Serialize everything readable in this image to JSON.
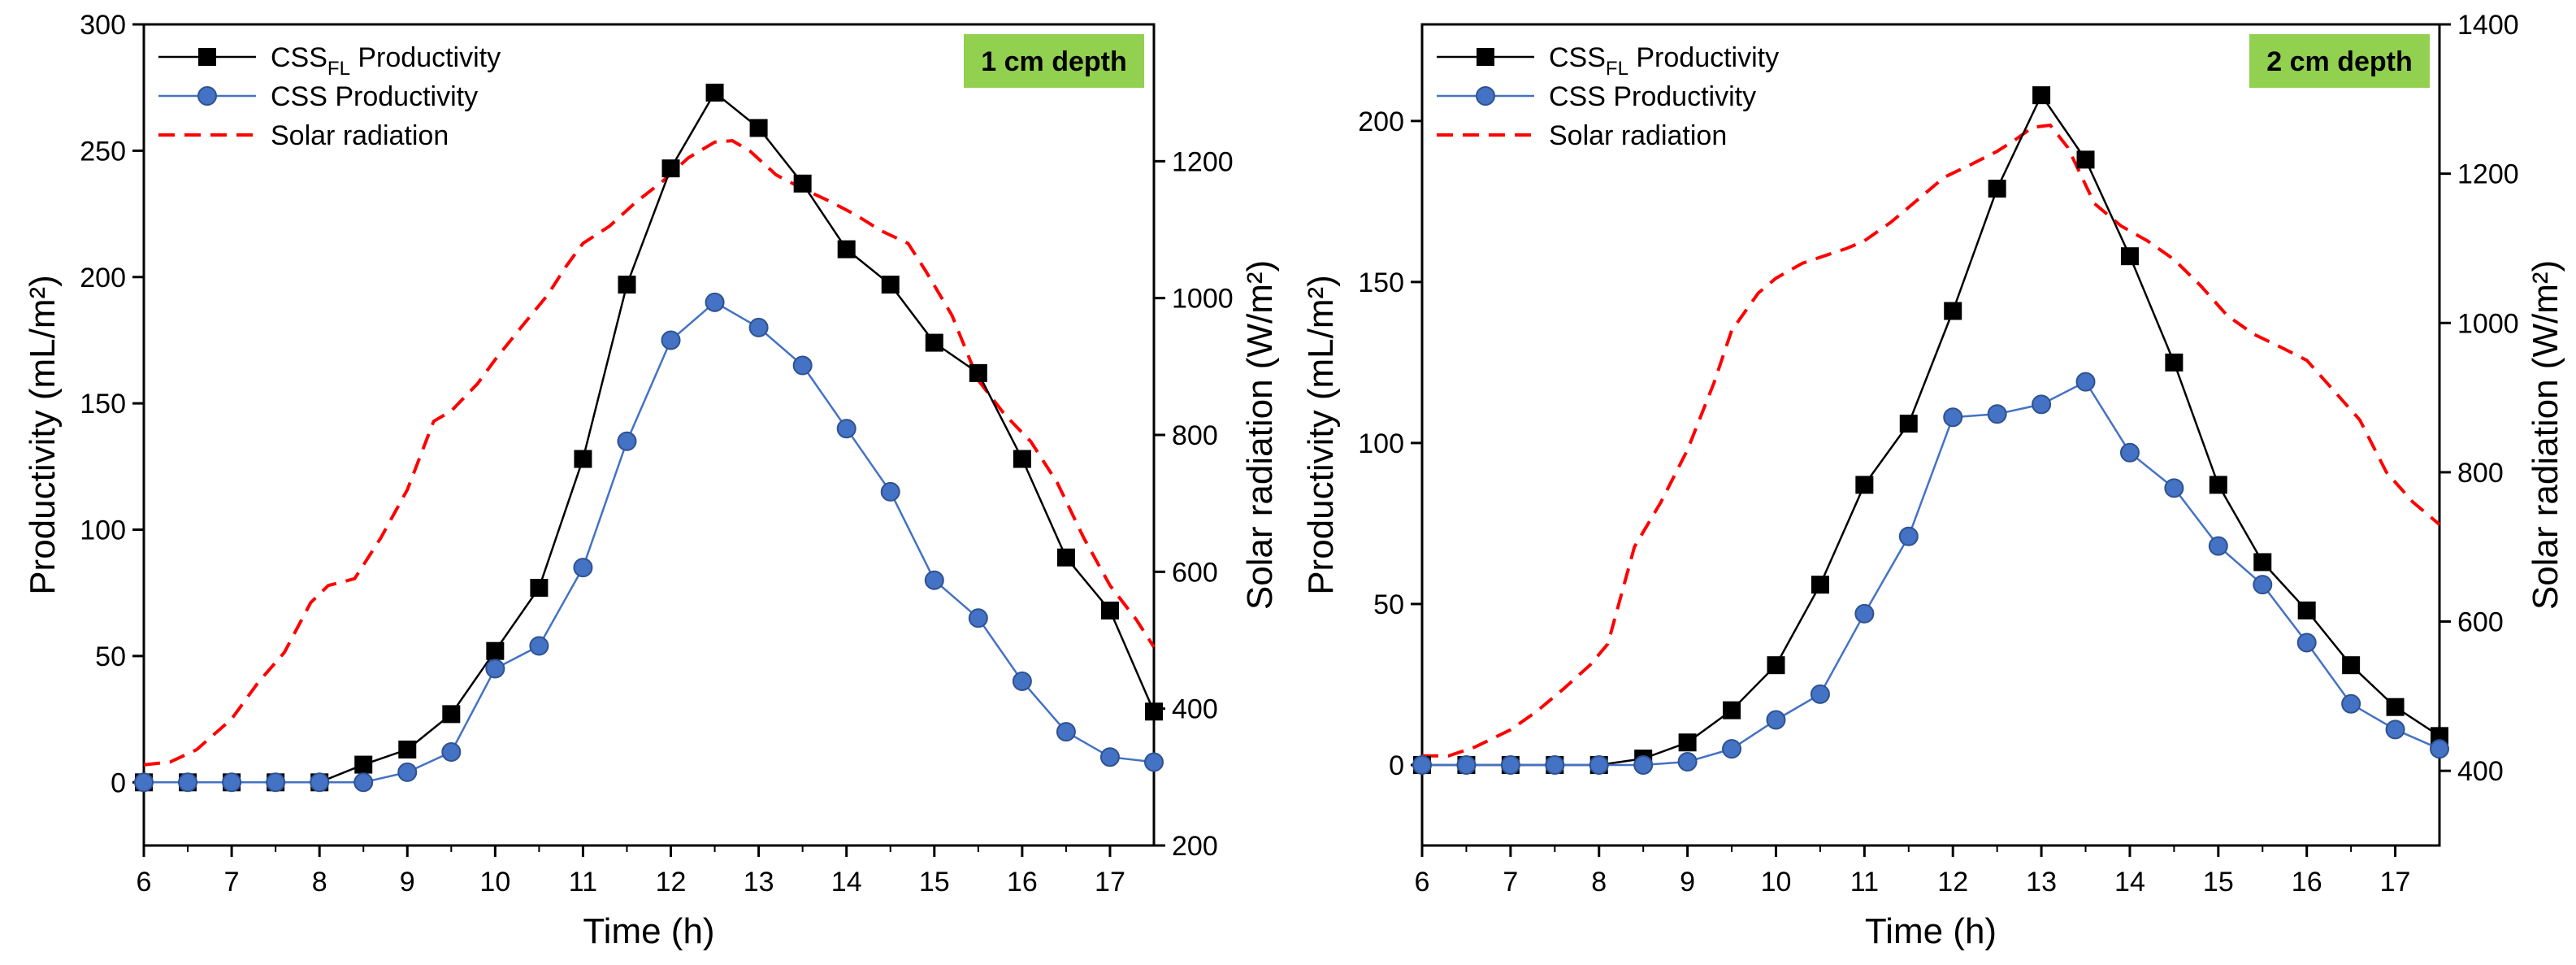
{
  "chart_data": [
    {
      "type": "line",
      "badge": "1 cm depth",
      "badge_color": "#92d050",
      "xlabel": "Time (h)",
      "ylabel": "Productivity (mL/m²)",
      "y2label": "Solar radiation (W/m²)",
      "xlim": [
        6,
        17.5
      ],
      "ylim": [
        -25,
        300
      ],
      "y2lim": [
        200,
        1400
      ],
      "xticks": [
        6,
        7,
        8,
        9,
        10,
        11,
        12,
        13,
        14,
        15,
        16,
        17
      ],
      "yticks": [
        0,
        50,
        100,
        150,
        200,
        250,
        300
      ],
      "y2ticks": [
        200,
        400,
        600,
        800,
        1000,
        1200
      ],
      "x": [
        6,
        6.5,
        7,
        7.5,
        8,
        8.5,
        9,
        9.5,
        10,
        10.5,
        11,
        11.5,
        12,
        12.5,
        13,
        13.5,
        14,
        14.5,
        15,
        15.5,
        16,
        16.5,
        17,
        17.5
      ],
      "series": [
        {
          "name": "CSS_FL Productivity",
          "name_main": "CSS",
          "name_sub": "FL",
          "name_rest": " Productivity",
          "color": "#000000",
          "marker": "square",
          "axis": "left",
          "values": [
            0,
            0,
            0,
            0,
            0,
            7,
            13,
            27,
            52,
            77,
            128,
            197,
            243,
            273,
            259,
            237,
            211,
            197,
            174,
            162,
            128,
            89,
            68,
            28
          ]
        },
        {
          "name": "CSS Productivity",
          "color": "#4472c4",
          "marker": "circle",
          "axis": "left",
          "values": [
            0,
            0,
            0,
            0,
            0,
            0,
            4,
            12,
            45,
            54,
            85,
            135,
            175,
            190,
            180,
            165,
            140,
            115,
            80,
            65,
            40,
            20,
            10,
            8
          ]
        },
        {
          "name": "Solar radiation",
          "color": "#ff0000",
          "dashed": true,
          "axis": "right",
          "x": [
            6,
            6.3,
            6.6,
            7,
            7.3,
            7.6,
            7.9,
            8.1,
            8.4,
            8.7,
            9,
            9.3,
            9.5,
            9.8,
            10,
            10.3,
            10.6,
            10.8,
            11,
            11.3,
            11.6,
            11.9,
            12.2,
            12.5,
            12.7,
            12.9,
            13.2,
            13.5,
            13.8,
            14.1,
            14.4,
            14.7,
            14.9,
            15.2,
            15.5,
            15.8,
            16.1,
            16.4,
            16.7,
            17,
            17.3,
            17.5
          ],
          "values": [
            318,
            322,
            340,
            385,
            438,
            482,
            555,
            580,
            590,
            650,
            720,
            820,
            835,
            875,
            910,
            958,
            1005,
            1045,
            1080,
            1105,
            1140,
            1170,
            1205,
            1228,
            1230,
            1215,
            1180,
            1160,
            1142,
            1122,
            1098,
            1080,
            1040,
            975,
            880,
            830,
            790,
            730,
            650,
            580,
            530,
            490
          ]
        }
      ]
    },
    {
      "type": "line",
      "badge": "2 cm depth",
      "badge_color": "#92d050",
      "xlabel": "Time (h)",
      "ylabel": "Productivity (mL/m²)",
      "y2label": "Solar radiation (W/m²)",
      "xlim": [
        6,
        17.5
      ],
      "ylim": [
        -25,
        230
      ],
      "y2lim": [
        300,
        1400
      ],
      "xticks": [
        6,
        7,
        8,
        9,
        10,
        11,
        12,
        13,
        14,
        15,
        16,
        17
      ],
      "yticks": [
        0,
        50,
        100,
        150,
        200
      ],
      "y2ticks": [
        400,
        600,
        800,
        1000,
        1200,
        1400
      ],
      "x": [
        6,
        6.5,
        7,
        7.5,
        8,
        8.5,
        9,
        9.5,
        10,
        10.5,
        11,
        11.5,
        12,
        12.5,
        13,
        13.5,
        14,
        14.5,
        15,
        15.5,
        16,
        16.5,
        17,
        17.5
      ],
      "series": [
        {
          "name": "CSS_FL Productivity",
          "name_main": "CSS",
          "name_sub": "FL",
          "name_rest": " Productivity",
          "color": "#000000",
          "marker": "square",
          "axis": "left",
          "values": [
            0,
            0,
            0,
            0,
            0,
            2,
            7,
            17,
            31,
            56,
            87,
            106,
            141,
            179,
            208,
            188,
            158,
            125,
            87,
            63,
            48,
            31,
            18,
            9
          ]
        },
        {
          "name": "CSS Productivity",
          "color": "#4472c4",
          "marker": "circle",
          "axis": "left",
          "values": [
            0,
            0,
            0,
            0,
            0,
            0,
            1,
            5,
            14,
            22,
            47,
            71,
            108,
            109,
            112,
            119,
            97,
            86,
            68,
            56,
            38,
            19,
            11,
            5
          ]
        },
        {
          "name": "Solar radiation",
          "color": "#ff0000",
          "dashed": true,
          "axis": "right",
          "x": [
            6,
            6.3,
            6.6,
            7,
            7.3,
            7.6,
            7.9,
            8.1,
            8.4,
            8.7,
            9,
            9.3,
            9.5,
            9.8,
            10,
            10.3,
            10.6,
            10.8,
            11,
            11.3,
            11.6,
            11.9,
            12.2,
            12.5,
            12.7,
            12.9,
            13.1,
            13.3,
            13.6,
            13.9,
            14.2,
            14.5,
            14.8,
            15.1,
            15.4,
            15.7,
            16,
            16.3,
            16.6,
            16.9,
            17.2,
            17.5
          ],
          "values": [
            420,
            420,
            432,
            455,
            480,
            510,
            542,
            570,
            700,
            760,
            830,
            920,
            990,
            1040,
            1060,
            1080,
            1092,
            1100,
            1110,
            1135,
            1165,
            1195,
            1212,
            1230,
            1245,
            1262,
            1265,
            1235,
            1160,
            1130,
            1110,
            1085,
            1050,
            1010,
            985,
            968,
            950,
            910,
            870,
            800,
            760,
            730
          ]
        }
      ]
    }
  ]
}
